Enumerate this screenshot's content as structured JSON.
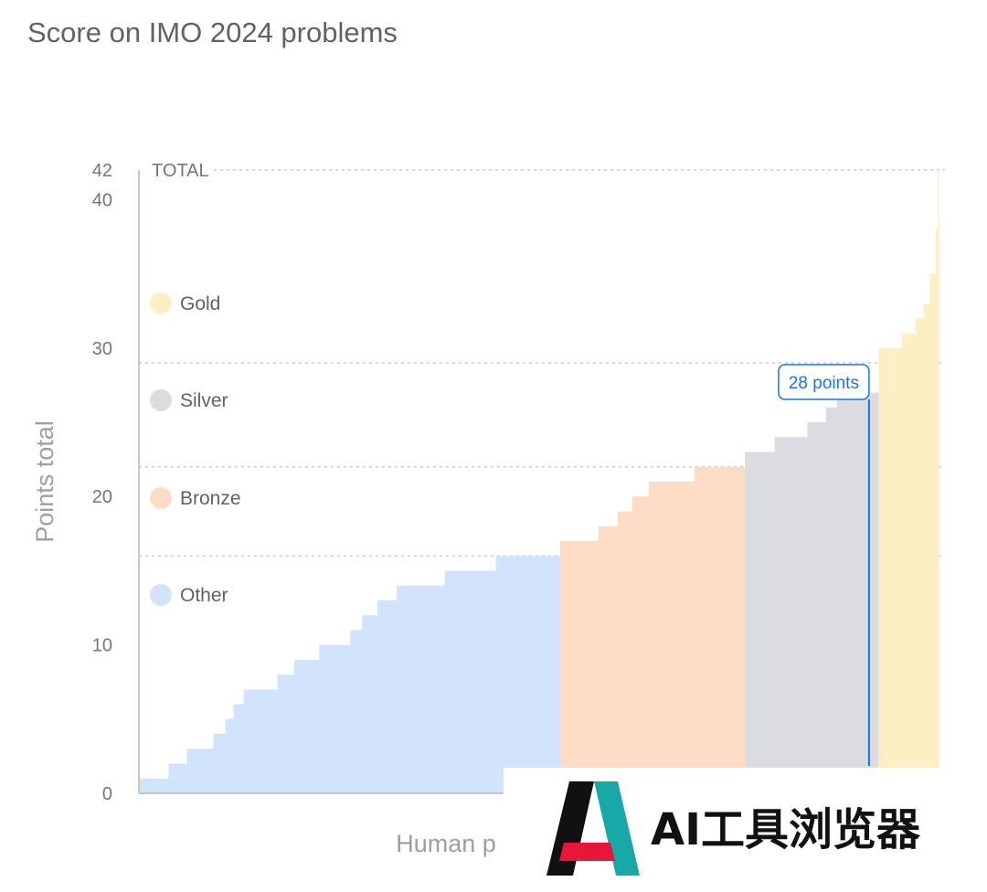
{
  "chart_data": {
    "type": "area",
    "title": "Score on IMO 2024 problems",
    "ylabel": "Points total",
    "xlabel": "Human p",
    "ylim": [
      0,
      42
    ],
    "yticks": [
      0,
      10,
      20,
      30,
      40,
      42
    ],
    "grid_lines": [
      {
        "y": 42,
        "label": "TOTAL"
      },
      {
        "y": 29
      },
      {
        "y": 22
      },
      {
        "y": 16
      }
    ],
    "legend_position": "left, inside plot",
    "legend": [
      {
        "name": "Gold",
        "color": "#fdefc3"
      },
      {
        "name": "Silver",
        "color": "#dadce0"
      },
      {
        "name": "Bronze",
        "color": "#fcdcc5"
      },
      {
        "name": "Other",
        "color": "#d2e3fc"
      }
    ],
    "series": [
      {
        "name": "Other",
        "color": "#d2e3fc",
        "x": [
          0,
          0.037,
          0.06,
          0.093,
          0.108,
          0.118,
          0.131,
          0.173,
          0.194,
          0.225,
          0.264,
          0.279,
          0.298,
          0.322,
          0.382,
          0.446,
          0.526
        ],
        "y": [
          1,
          2,
          3,
          4,
          5,
          6,
          7,
          8,
          9,
          10,
          11,
          12,
          13,
          14,
          15,
          16,
          16
        ]
      },
      {
        "name": "Bronze",
        "color": "#fcdcc5",
        "x": [
          0.526,
          0.574,
          0.598,
          0.616,
          0.637,
          0.694,
          0.757
        ],
        "y": [
          17,
          18,
          19,
          20,
          21,
          22,
          22
        ]
      },
      {
        "name": "Silver",
        "color": "#dadce0",
        "x": [
          0.757,
          0.794,
          0.835,
          0.858,
          0.872,
          0.924
        ],
        "y": [
          23,
          24,
          25,
          26,
          27,
          29
        ]
      },
      {
        "name": "Gold",
        "color": "#fdefc3",
        "x": [
          0.924,
          0.953,
          0.97,
          0.98,
          0.988,
          0.995,
          0.998,
          1.0
        ],
        "y": [
          30,
          31,
          32,
          33,
          35,
          38,
          42,
          42
        ]
      }
    ],
    "annotation": {
      "label": "28 points",
      "x": 0.912,
      "y": 28,
      "color": "#1a73e8"
    }
  },
  "watermark": {
    "text": "AI工具浏览器",
    "colors": [
      "#111111",
      "#e8173a",
      "#18a8a8"
    ]
  }
}
